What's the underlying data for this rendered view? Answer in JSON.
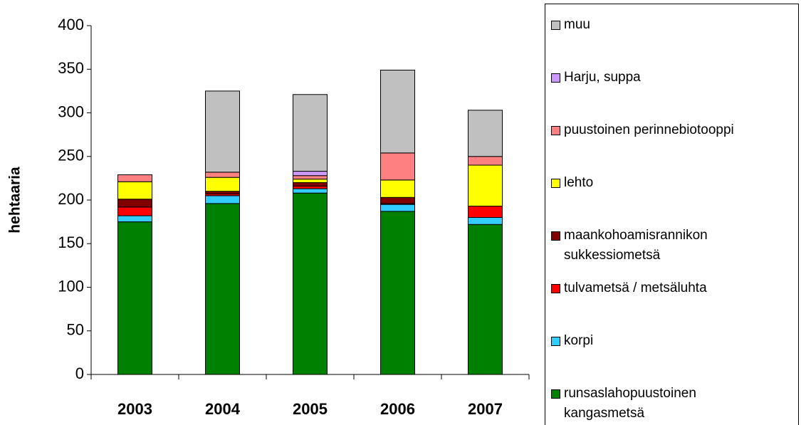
{
  "chart_data": {
    "type": "stacked_bar",
    "y_label": "hehtaaria",
    "categories": [
      "2003",
      "2004",
      "2005",
      "2006",
      "2007"
    ],
    "series": [
      {
        "name": "runsaslahopuustoinen kangasmetsä",
        "color": "#008000",
        "values": [
          175,
          196,
          208,
          187,
          172
        ]
      },
      {
        "name": "korpi",
        "color": "#33ccff",
        "values": [
          7,
          9,
          5,
          8,
          8
        ]
      },
      {
        "name": "tulvametsä / metsäluhta",
        "color": "#ff0000",
        "values": [
          10,
          2,
          3,
          1,
          13
        ]
      },
      {
        "name": "maankohoamisrannikon sukkessiometsä",
        "color": "#800000",
        "values": [
          9,
          3,
          4,
          7,
          0
        ]
      },
      {
        "name": "lehto",
        "color": "#ffff00",
        "values": [
          20,
          16,
          4,
          20,
          47
        ]
      },
      {
        "name": "puustoinen perinnebiotooppi",
        "color": "#ff8080",
        "values": [
          8,
          6,
          4,
          31,
          10
        ]
      },
      {
        "name": "Harju, suppa",
        "color": "#cc99ff",
        "values": [
          0,
          0,
          5,
          0,
          0
        ]
      },
      {
        "name": "muu",
        "color": "#c0c0c0",
        "values": [
          0,
          93,
          88,
          95,
          53
        ]
      }
    ],
    "ylim": [
      0,
      400
    ],
    "yticks": [
      0,
      50,
      100,
      150,
      200,
      250,
      300,
      350,
      400
    ],
    "grid": false
  }
}
